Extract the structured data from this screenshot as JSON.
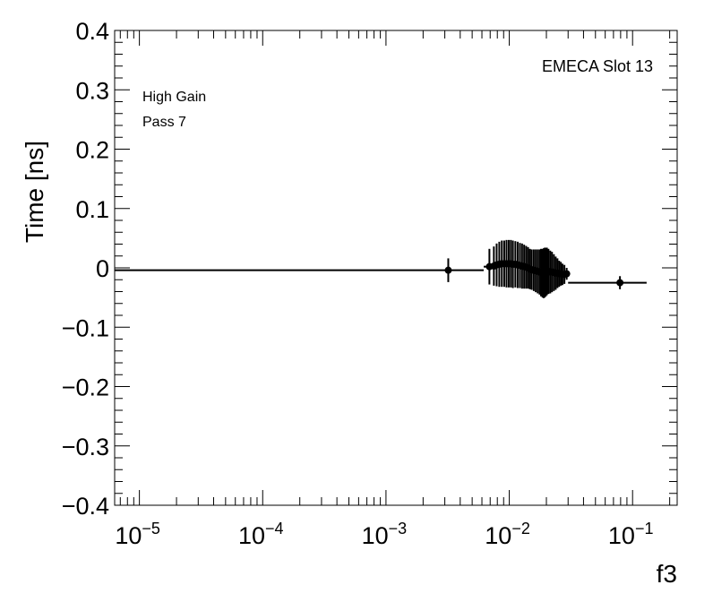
{
  "chart_data": {
    "type": "scatter",
    "title": "",
    "xlabel": "f3",
    "ylabel": "Time [ns]",
    "x_scale": "log",
    "xlim": [
      6.3e-06,
      0.23
    ],
    "ylim": [
      -0.4,
      0.4
    ],
    "grid": false,
    "legend": "none",
    "annotations": [
      "EMECA Slot 13",
      "High Gain",
      "Pass 7"
    ],
    "x_ticks": [
      {
        "value": 1e-05,
        "base": "10",
        "exp": "−5"
      },
      {
        "value": 0.0001,
        "base": "10",
        "exp": "−4"
      },
      {
        "value": 0.001,
        "base": "10",
        "exp": "−3"
      },
      {
        "value": 0.01,
        "base": "10",
        "exp": "−2"
      },
      {
        "value": 0.1,
        "base": "10",
        "exp": "−1"
      }
    ],
    "y_ticks": [
      {
        "value": 0.4,
        "label": "0.4"
      },
      {
        "value": 0.3,
        "label": "0.3"
      },
      {
        "value": 0.2,
        "label": "0.2"
      },
      {
        "value": 0.1,
        "label": "0.1"
      },
      {
        "value": 0,
        "label": "0"
      },
      {
        "value": -0.1,
        "label": "−0.1"
      },
      {
        "value": -0.2,
        "label": "−0.2"
      },
      {
        "value": -0.3,
        "label": "−0.3"
      },
      {
        "value": -0.4,
        "label": "−0.4"
      }
    ],
    "points": [
      {
        "x": 0.0032,
        "y": -0.004,
        "err": 0.02,
        "xlo": 6.3e-06,
        "xhi": 0.0062
      },
      {
        "x": 0.0069,
        "y": 0.002,
        "err": 0.03,
        "xlo": 0.0062,
        "xhi": 0.0073
      },
      {
        "x": 0.0075,
        "y": 0.003,
        "err": 0.033,
        "xlo": 0.0073,
        "xhi": 0.0077
      },
      {
        "x": 0.0079,
        "y": 0.005,
        "err": 0.036,
        "xlo": 0.0077,
        "xhi": 0.0081
      },
      {
        "x": 0.0083,
        "y": 0.006,
        "err": 0.038,
        "xlo": 0.0081,
        "xhi": 0.0085
      },
      {
        "x": 0.0087,
        "y": 0.007,
        "err": 0.039,
        "xlo": 0.0085,
        "xhi": 0.0089
      },
      {
        "x": 0.0091,
        "y": 0.007,
        "err": 0.039,
        "xlo": 0.0089,
        "xhi": 0.0093
      },
      {
        "x": 0.0095,
        "y": 0.007,
        "err": 0.04,
        "xlo": 0.0093,
        "xhi": 0.0097
      },
      {
        "x": 0.0099,
        "y": 0.007,
        "err": 0.04,
        "xlo": 0.0097,
        "xhi": 0.0101
      },
      {
        "x": 0.0103,
        "y": 0.007,
        "err": 0.04,
        "xlo": 0.0101,
        "xhi": 0.0105
      },
      {
        "x": 0.0107,
        "y": 0.006,
        "err": 0.04,
        "xlo": 0.0105,
        "xhi": 0.0109
      },
      {
        "x": 0.0112,
        "y": 0.006,
        "err": 0.039,
        "xlo": 0.0109,
        "xhi": 0.0114
      },
      {
        "x": 0.0117,
        "y": 0.005,
        "err": 0.039,
        "xlo": 0.0114,
        "xhi": 0.0119
      },
      {
        "x": 0.0122,
        "y": 0.004,
        "err": 0.038,
        "xlo": 0.0119,
        "xhi": 0.0124
      },
      {
        "x": 0.0127,
        "y": 0.003,
        "err": 0.038,
        "xlo": 0.0124,
        "xhi": 0.0129
      },
      {
        "x": 0.0132,
        "y": 0.002,
        "err": 0.037,
        "xlo": 0.0129,
        "xhi": 0.0134
      },
      {
        "x": 0.0137,
        "y": 0.001,
        "err": 0.036,
        "xlo": 0.0134,
        "xhi": 0.0139
      },
      {
        "x": 0.0142,
        "y": 0.0,
        "err": 0.035,
        "xlo": 0.0139,
        "xhi": 0.0144
      },
      {
        "x": 0.0147,
        "y": -0.002,
        "err": 0.034,
        "xlo": 0.0144,
        "xhi": 0.0149
      },
      {
        "x": 0.0152,
        "y": -0.003,
        "err": 0.034,
        "xlo": 0.0149,
        "xhi": 0.0155
      },
      {
        "x": 0.0158,
        "y": -0.004,
        "err": 0.035,
        "xlo": 0.0155,
        "xhi": 0.0161
      },
      {
        "x": 0.0164,
        "y": -0.005,
        "err": 0.036,
        "xlo": 0.0161,
        "xhi": 0.0167
      },
      {
        "x": 0.017,
        "y": -0.006,
        "err": 0.037,
        "xlo": 0.0167,
        "xhi": 0.0173
      },
      {
        "x": 0.0176,
        "y": -0.007,
        "err": 0.038,
        "xlo": 0.0173,
        "xhi": 0.0178
      },
      {
        "x": 0.0181,
        "y": -0.008,
        "err": 0.04,
        "xlo": 0.0178,
        "xhi": 0.0183
      },
      {
        "x": 0.0186,
        "y": -0.009,
        "err": 0.041,
        "xlo": 0.0183,
        "xhi": 0.0188
      },
      {
        "x": 0.019,
        "y": -0.009,
        "err": 0.042,
        "xlo": 0.0188,
        "xhi": 0.0192
      },
      {
        "x": 0.0194,
        "y": -0.008,
        "err": 0.042,
        "xlo": 0.0192,
        "xhi": 0.0196
      },
      {
        "x": 0.0198,
        "y": -0.007,
        "err": 0.041,
        "xlo": 0.0196,
        "xhi": 0.02
      },
      {
        "x": 0.0202,
        "y": -0.006,
        "err": 0.04,
        "xlo": 0.02,
        "xhi": 0.0205
      },
      {
        "x": 0.0208,
        "y": -0.006,
        "err": 0.038,
        "xlo": 0.0205,
        "xhi": 0.0211
      },
      {
        "x": 0.0215,
        "y": -0.007,
        "err": 0.036,
        "xlo": 0.0211,
        "xhi": 0.0218
      },
      {
        "x": 0.0222,
        "y": -0.007,
        "err": 0.034,
        "xlo": 0.0218,
        "xhi": 0.0226
      },
      {
        "x": 0.023,
        "y": -0.008,
        "err": 0.031,
        "xlo": 0.0226,
        "xhi": 0.0234
      },
      {
        "x": 0.0238,
        "y": -0.009,
        "err": 0.028,
        "xlo": 0.0234,
        "xhi": 0.0242
      },
      {
        "x": 0.0246,
        "y": -0.009,
        "err": 0.025,
        "xlo": 0.0242,
        "xhi": 0.025
      },
      {
        "x": 0.0254,
        "y": -0.01,
        "err": 0.022,
        "xlo": 0.025,
        "xhi": 0.0258
      },
      {
        "x": 0.0262,
        "y": -0.01,
        "err": 0.02,
        "xlo": 0.0258,
        "xhi": 0.0266
      },
      {
        "x": 0.027,
        "y": -0.011,
        "err": 0.018,
        "xlo": 0.0266,
        "xhi": 0.0275
      },
      {
        "x": 0.028,
        "y": -0.011,
        "err": 0.016,
        "xlo": 0.0275,
        "xhi": 0.0285
      },
      {
        "x": 0.0292,
        "y": -0.01,
        "err": 0.01,
        "xlo": 0.0285,
        "xhi": 0.03
      },
      {
        "x": 0.079,
        "y": -0.025,
        "err": 0.011,
        "xlo": 0.03,
        "xhi": 0.13
      }
    ]
  }
}
